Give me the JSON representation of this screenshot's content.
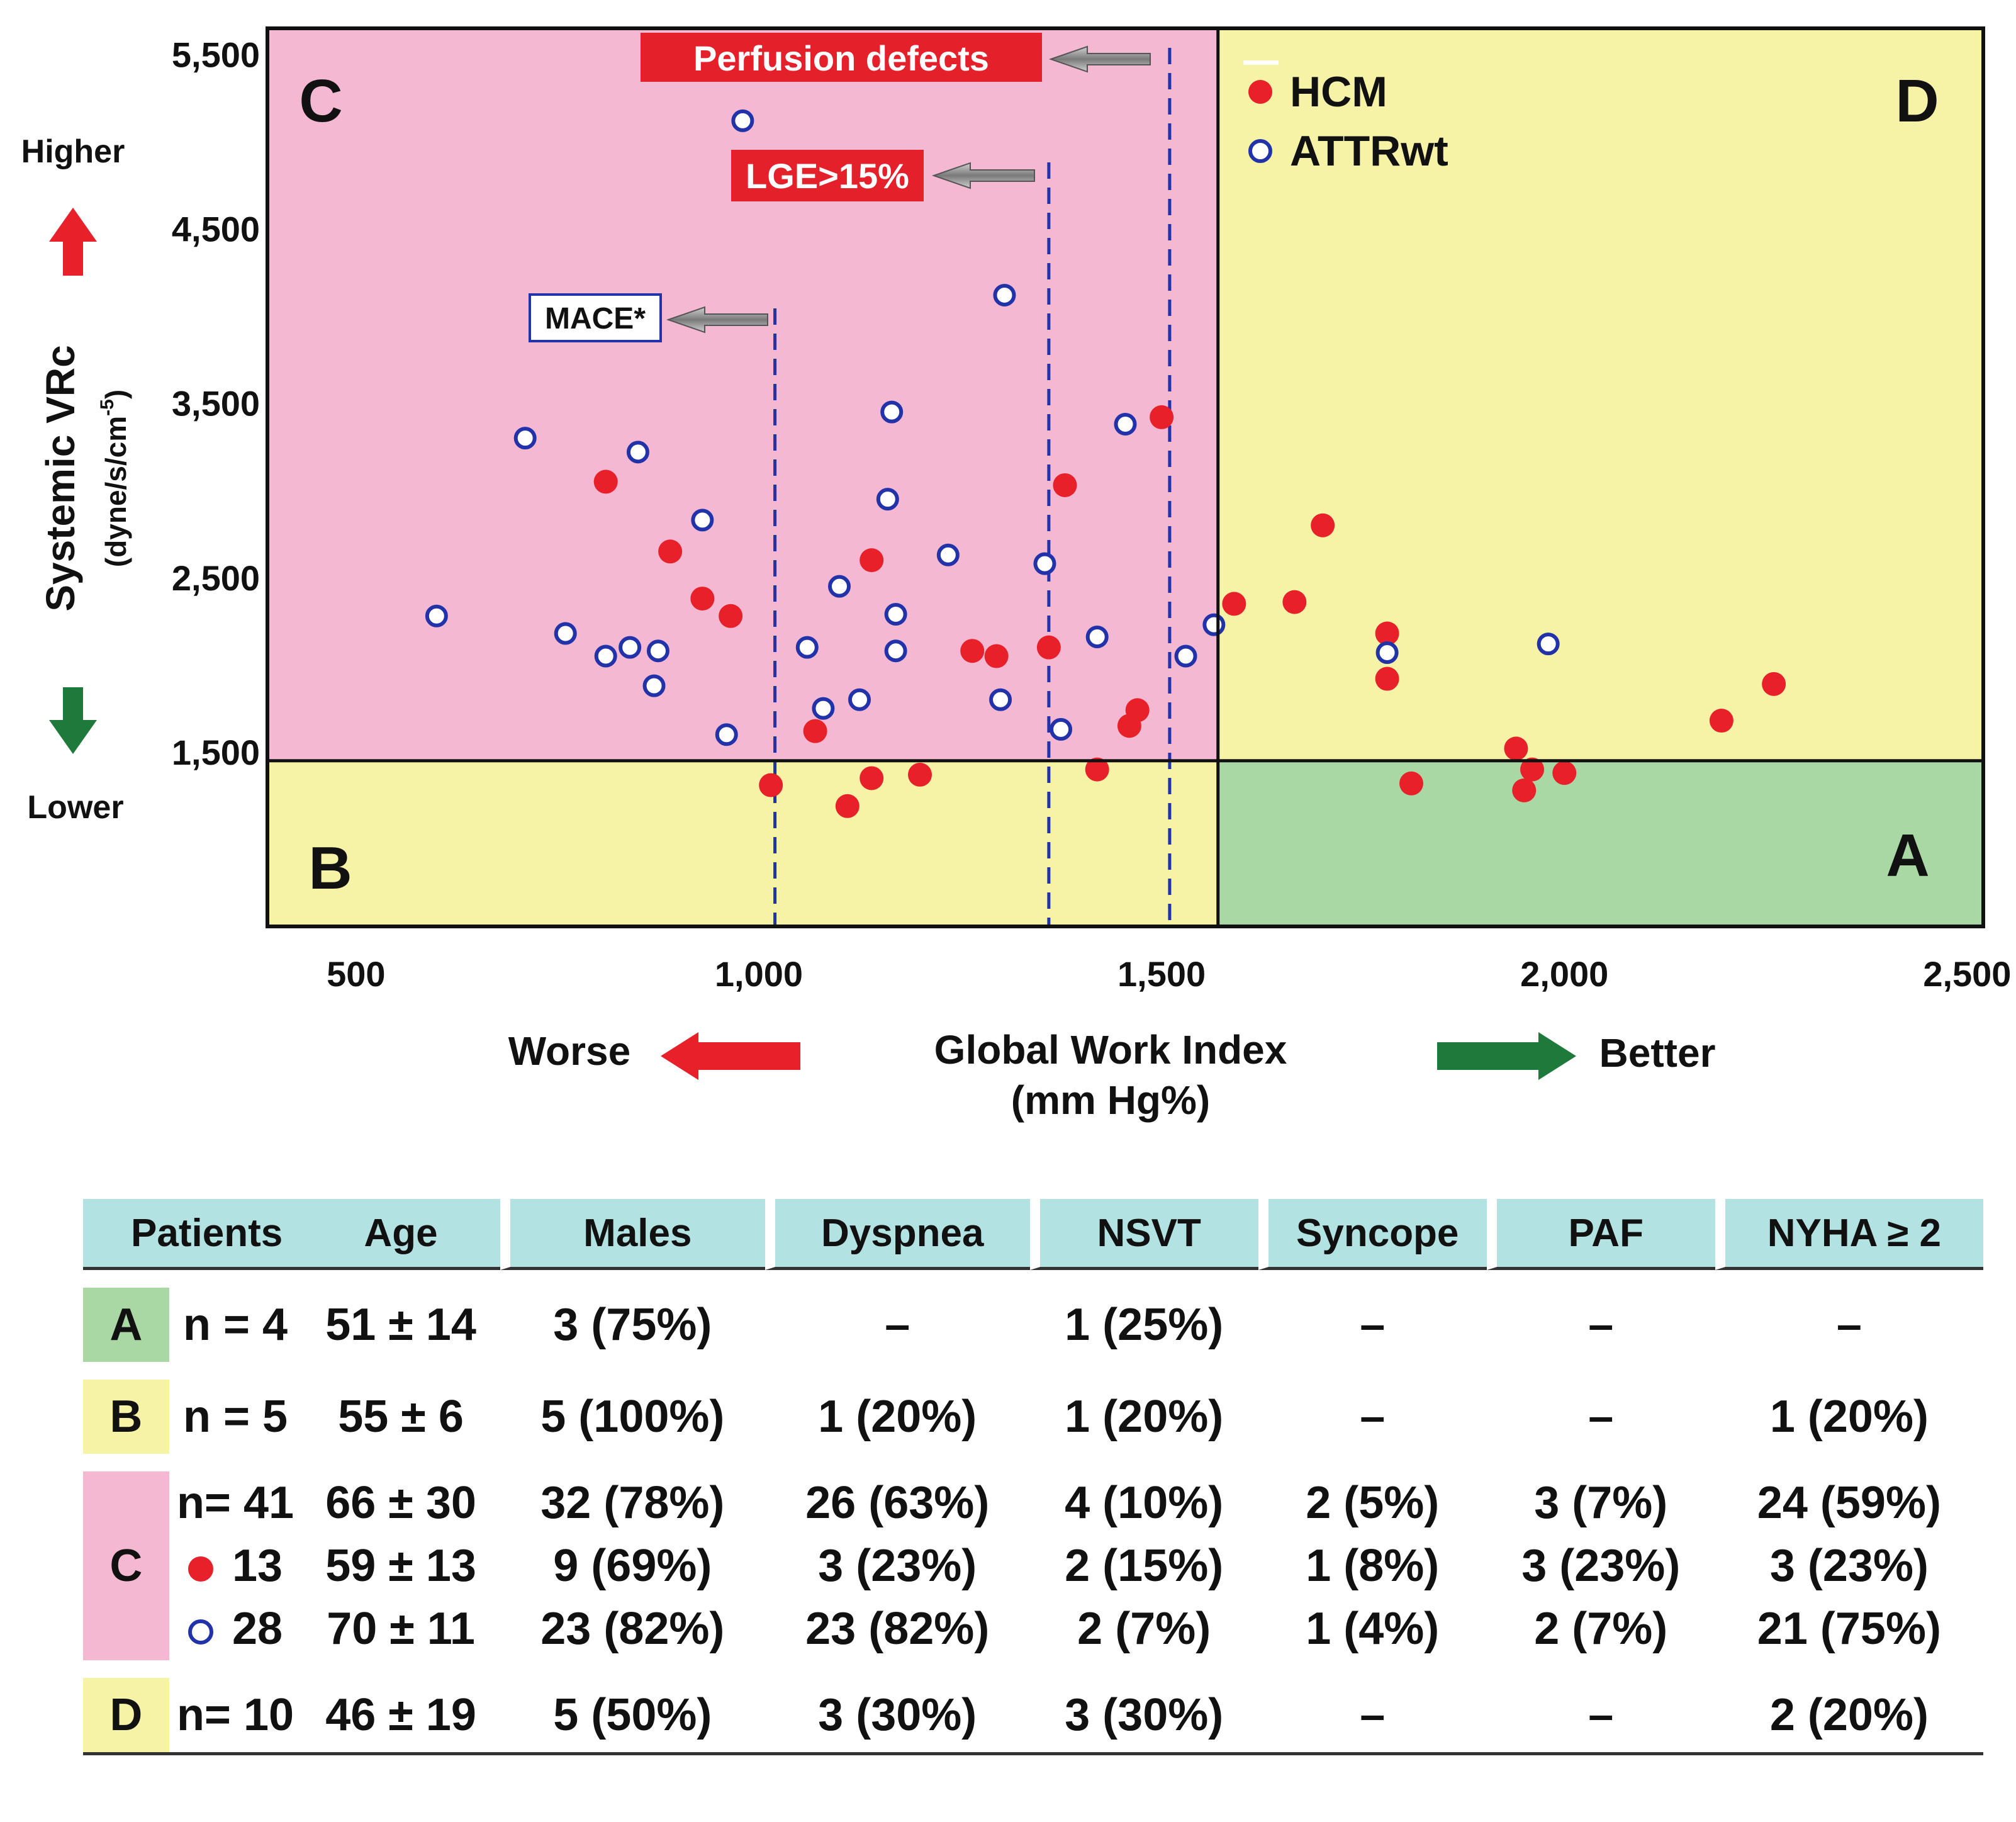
{
  "chart_data": {
    "type": "scatter",
    "xlabel": "Global Work Index",
    "xlabel_unit": "(mm Hg%)",
    "ylabel": "Systemic VRc",
    "ylabel_unit_main": "(dyne/s/cm",
    "ylabel_unit_exp": "-5",
    "ylabel_unit_close": ")",
    "xlim": [
      390,
      2520
    ],
    "ylim": [
      500,
      5650
    ],
    "x_ticks": [
      500,
      1000,
      1500,
      2000,
      2500
    ],
    "x_tick_labels": [
      "500",
      "1,000",
      "1,500",
      "2,000",
      "2,500"
    ],
    "y_ticks": [
      1500,
      2500,
      3500,
      4500,
      5500
    ],
    "y_tick_labels": [
      "1,500",
      "2,500",
      "3,500",
      "4,500",
      "5,500"
    ],
    "x_axis_note_left": "Worse",
    "x_axis_note_right": "Better",
    "y_axis_note_top": "Higher",
    "y_axis_note_bottom": "Lower",
    "quadrant_split": {
      "x": 1570,
      "y": 1450
    },
    "quadrants": [
      {
        "label": "A",
        "color": "#a9d8a5"
      },
      {
        "label": "B",
        "color": "#f6f3a6"
      },
      {
        "label": "C",
        "color": "#f4b8d2"
      },
      {
        "label": "D",
        "color": "#f6f3a6"
      }
    ],
    "thresholds": [
      {
        "label": "MACE*",
        "x": 1020,
        "style": "boxed"
      },
      {
        "label": "LGE>15%",
        "x": 1360,
        "style": "red"
      },
      {
        "label": "Perfusion defects",
        "x": 1510,
        "style": "red"
      }
    ],
    "series": [
      {
        "name": "HCM",
        "color": "#e8202a",
        "points": [
          [
            810,
            3050
          ],
          [
            890,
            2650
          ],
          [
            930,
            2380
          ],
          [
            965,
            2280
          ],
          [
            1015,
            1310
          ],
          [
            1070,
            1620
          ],
          [
            1110,
            1190
          ],
          [
            1140,
            2600
          ],
          [
            1140,
            1350
          ],
          [
            1200,
            1370
          ],
          [
            1265,
            2080
          ],
          [
            1295,
            2050
          ],
          [
            1360,
            2100
          ],
          [
            1380,
            3030
          ],
          [
            1420,
            1400
          ],
          [
            1460,
            1650
          ],
          [
            1470,
            1740
          ],
          [
            1500,
            3420
          ],
          [
            1590,
            2350
          ],
          [
            1665,
            2360
          ],
          [
            1700,
            2800
          ],
          [
            1780,
            2180
          ],
          [
            1780,
            1920
          ],
          [
            1810,
            1320
          ],
          [
            1940,
            1520
          ],
          [
            1950,
            1280
          ],
          [
            1960,
            1400
          ],
          [
            2000,
            1380
          ],
          [
            2195,
            1680
          ],
          [
            2260,
            1890
          ]
        ]
      },
      {
        "name": "ATTRwt",
        "color": "#2233aa",
        "points": [
          [
            600,
            2280
          ],
          [
            710,
            3300
          ],
          [
            760,
            2180
          ],
          [
            810,
            2050
          ],
          [
            840,
            2100
          ],
          [
            850,
            3220
          ],
          [
            870,
            1880
          ],
          [
            875,
            2080
          ],
          [
            930,
            2830
          ],
          [
            960,
            1600
          ],
          [
            980,
            5120
          ],
          [
            1060,
            2100
          ],
          [
            1080,
            1750
          ],
          [
            1100,
            2450
          ],
          [
            1125,
            1800
          ],
          [
            1160,
            2950
          ],
          [
            1165,
            3450
          ],
          [
            1170,
            2290
          ],
          [
            1170,
            2080
          ],
          [
            1235,
            2630
          ],
          [
            1300,
            1800
          ],
          [
            1305,
            4120
          ],
          [
            1355,
            2580
          ],
          [
            1375,
            1630
          ],
          [
            1420,
            2160
          ],
          [
            1455,
            3380
          ],
          [
            1530,
            2050
          ],
          [
            1565,
            2230
          ],
          [
            1780,
            2070
          ],
          [
            1980,
            2120
          ]
        ]
      }
    ]
  },
  "table": {
    "headers": [
      "Patients",
      "Age",
      "Males",
      "Dyspnea",
      "NSVT",
      "Syncope",
      "PAF",
      "NYHA ≥ 2"
    ],
    "rows": [
      {
        "group": "A",
        "n": "n = 4",
        "age": "51 ± 14",
        "males": "3 (75%)",
        "dyspnea": "–",
        "nsvt": "1 (25%)",
        "syncope": "–",
        "paf": "–",
        "nyha": "–"
      },
      {
        "group": "B",
        "n": "n = 5",
        "age": "55 ± 6",
        "males": "5 (100%)",
        "dyspnea": "1 (20%)",
        "nsvt": "1 (20%)",
        "syncope": "–",
        "paf": "–",
        "nyha": "1 (20%)"
      },
      {
        "group": "C",
        "n": "n= 41",
        "age": "66 ± 30",
        "males": "32 (78%)",
        "dyspnea": "26 (63%)",
        "nsvt": "4 (10%)",
        "syncope": "2 (5%)",
        "paf": "3 (7%)",
        "nyha": "24 (59%)"
      },
      {
        "group": "HCM",
        "n": "13",
        "age": "59 ± 13",
        "males": "9 (69%)",
        "dyspnea": "3 (23%)",
        "nsvt": "2 (15%)",
        "syncope": "1 (8%)",
        "paf": "3 (23%)",
        "nyha": "3 (23%)"
      },
      {
        "group": "ATTRwt",
        "n": "28",
        "age": "70 ± 11",
        "males": "23 (82%)",
        "dyspnea": "23 (82%)",
        "nsvt": "2 (7%)",
        "syncope": "1 (4%)",
        "paf": "2 (7%)",
        "nyha": "21 (75%)"
      },
      {
        "group": "D",
        "n": "n= 10",
        "age": "46 ± 19",
        "males": "5 (50%)",
        "dyspnea": "3 (30%)",
        "nsvt": "3 (30%)",
        "syncope": "–",
        "paf": "–",
        "nyha": "2 (20%)"
      }
    ]
  }
}
